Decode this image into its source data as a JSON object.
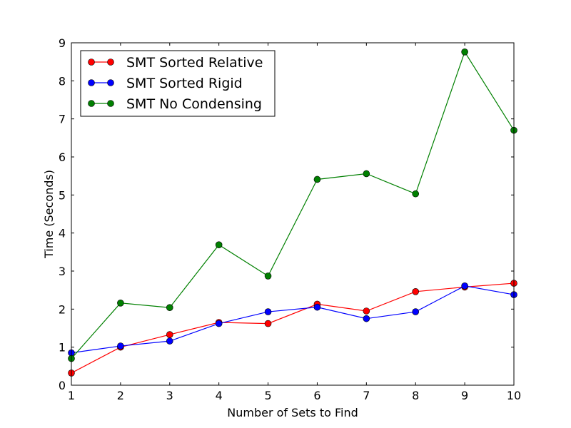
{
  "chart_data": {
    "type": "line",
    "title": "",
    "xlabel": "Number of Sets to Find",
    "ylabel": "Time (Seconds)",
    "xlim": [
      1,
      10
    ],
    "ylim": [
      0,
      9
    ],
    "xticks": [
      "1",
      "2",
      "3",
      "4",
      "5",
      "6",
      "7",
      "8",
      "9",
      "10"
    ],
    "yticks": [
      "0",
      "1",
      "2",
      "3",
      "4",
      "5",
      "6",
      "7",
      "8",
      "9"
    ],
    "grid": false,
    "legend_position": "top-left",
    "x": [
      1,
      2,
      3,
      4,
      5,
      6,
      7,
      8,
      9,
      10
    ],
    "series": [
      {
        "name": "SMT Sorted Relative",
        "color": "#ff0000",
        "values": [
          0.32,
          1.0,
          1.33,
          1.65,
          1.62,
          2.13,
          1.95,
          2.46,
          2.58,
          2.68
        ]
      },
      {
        "name": "SMT Sorted Rigid",
        "color": "#0000ff",
        "values": [
          0.85,
          1.03,
          1.16,
          1.62,
          1.93,
          2.05,
          1.75,
          1.93,
          2.61,
          2.38
        ]
      },
      {
        "name": "SMT No Condensing",
        "color": "#008000",
        "values": [
          0.7,
          2.16,
          2.04,
          3.69,
          2.87,
          5.41,
          5.56,
          5.03,
          8.76,
          6.7
        ]
      }
    ]
  }
}
